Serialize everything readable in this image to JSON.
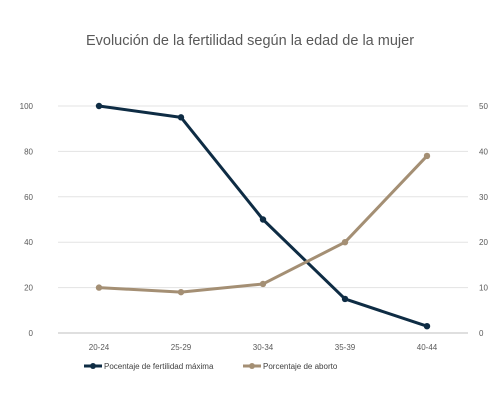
{
  "chart_data": {
    "type": "line",
    "title": "Evolución de la fertilidad según la edad de la mujer",
    "categories": [
      "20-24",
      "25-29",
      "30-34",
      "35-39",
      "40-44"
    ],
    "y_left": {
      "min": 0,
      "max": 100,
      "step": 20,
      "ticks": [
        "0",
        "20",
        "40",
        "60",
        "80",
        "100"
      ]
    },
    "y_right": {
      "min": 0,
      "max": 50,
      "step": 10,
      "ticks": [
        "0",
        "10",
        "20",
        "30",
        "40",
        "50"
      ]
    },
    "grid": true,
    "legend_position": "bottom",
    "series": [
      {
        "name": "Pocentaje de fertilidad máxima",
        "axis": "left",
        "color": "#0e2c44",
        "values": [
          100,
          95,
          50,
          15,
          3
        ]
      },
      {
        "name": "Porcentaje de aborto",
        "axis": "right",
        "color": "#a48f74",
        "values": [
          10,
          9,
          10.8,
          20,
          39
        ]
      }
    ]
  }
}
